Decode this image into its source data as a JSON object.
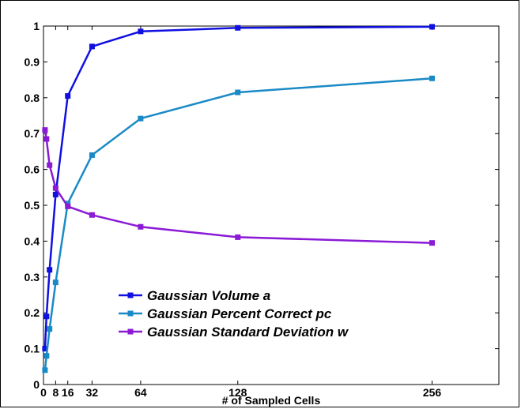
{
  "chart_data": {
    "type": "line",
    "title": "",
    "xlabel": "# of Sampled Cells",
    "ylabel": "",
    "xlim": [
      0,
      300
    ],
    "ylim": [
      0,
      1
    ],
    "xticks": [
      0,
      8,
      16,
      32,
      64,
      128,
      256
    ],
    "xtick_labels": [
      "0",
      "8",
      "16",
      "32",
      "64",
      "128",
      "256"
    ],
    "yticks": [
      0,
      0.1,
      0.2,
      0.3,
      0.4,
      0.5,
      0.6,
      0.7,
      0.8,
      0.9,
      1
    ],
    "ytick_labels": [
      "0",
      "0.1",
      "0.2",
      "0.3",
      "0.4",
      "0.5",
      "0.6",
      "0.7",
      "0.8",
      "0.9",
      "1"
    ],
    "grid": false,
    "legend_position": "lower-left",
    "x": [
      1,
      2,
      4,
      8,
      16,
      32,
      64,
      128,
      256
    ],
    "series": [
      {
        "name": "Gaussian Volume a",
        "color": "#1010e0",
        "values": [
          0.1,
          0.19,
          0.32,
          0.53,
          0.805,
          0.943,
          0.985,
          0.995,
          0.998
        ]
      },
      {
        "name": "Gaussian Percent Correct pc",
        "color": "#1a8ac6",
        "values": [
          0.04,
          0.08,
          0.155,
          0.285,
          0.505,
          0.64,
          0.742,
          0.815,
          0.854
        ]
      },
      {
        "name": "Gaussian Standard Deviation w",
        "color": "#8a1ad6",
        "values": [
          0.71,
          0.685,
          0.612,
          0.548,
          0.497,
          0.473,
          0.44,
          0.411,
          0.395
        ]
      }
    ]
  }
}
